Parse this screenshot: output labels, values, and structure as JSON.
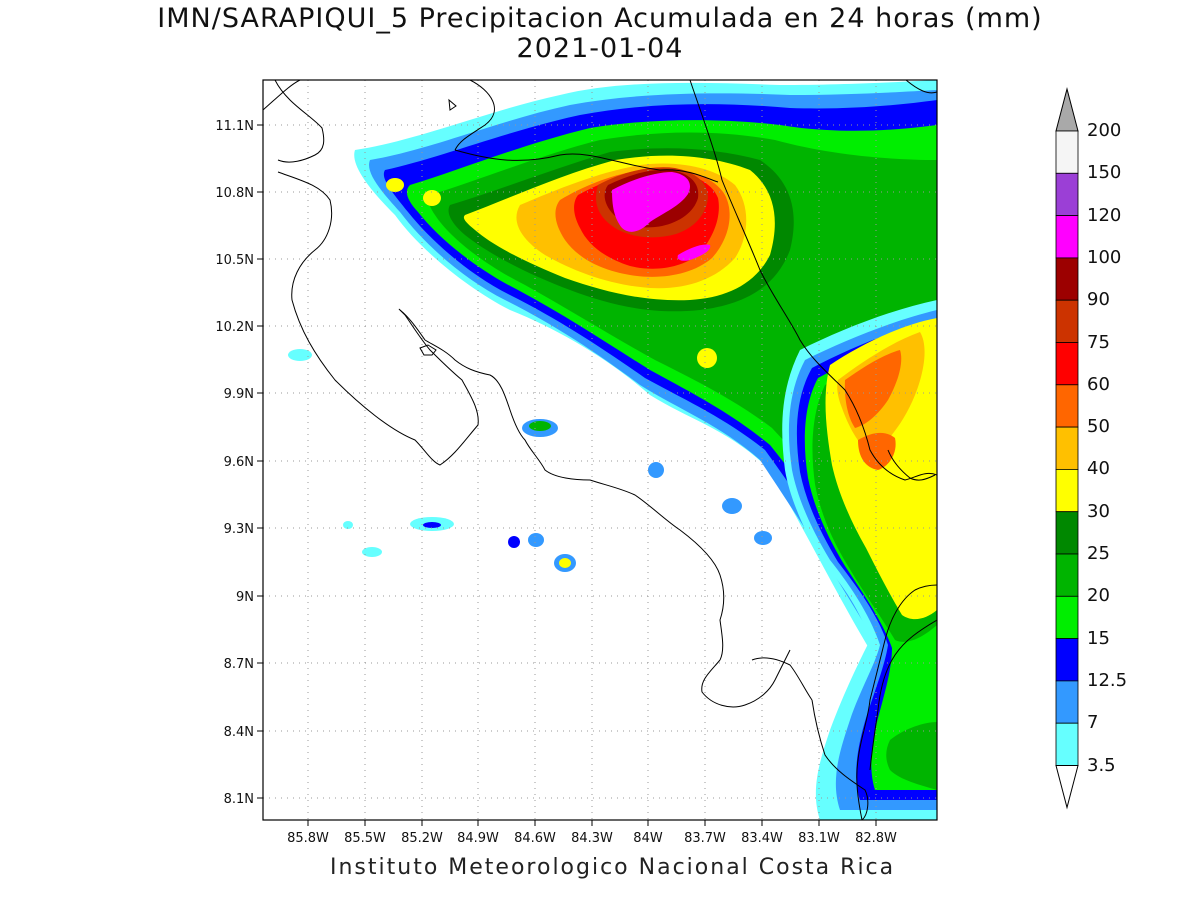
{
  "title": {
    "line1": "IMN/SARAPIQUI_5 Precipitacion Acumulada en 24 horas (mm)",
    "line2": "2021-01-04"
  },
  "footer": "Instituto Meteorologico Nacional Costa Rica",
  "axes": {
    "lat_ticks": [
      "11.1N",
      "10.8N",
      "10.5N",
      "10.2N",
      "9.9N",
      "9.6N",
      "9.3N",
      "9N",
      "8.7N",
      "8.4N",
      "8.1N"
    ],
    "lon_ticks": [
      "85.8W",
      "85.5W",
      "85.2W",
      "84.9W",
      "84.6W",
      "84.3W",
      "84W",
      "83.7W",
      "83.4W",
      "83.1W",
      "82.8W"
    ],
    "lon_range": [
      -86.1,
      -82.5
    ],
    "lat_range": [
      8.0,
      11.3
    ]
  },
  "colorbar": {
    "levels": [
      "200",
      "150",
      "120",
      "100",
      "90",
      "75",
      "60",
      "50",
      "40",
      "30",
      "25",
      "20",
      "15",
      "12.5",
      "7",
      "3.5"
    ],
    "colors": [
      "#a9a9a9",
      "#f5f5f5",
      "#9b3fd6",
      "#ff00ff",
      "#9c0000",
      "#cc3300",
      "#ff0000",
      "#ff6600",
      "#ffc000",
      "#ffff00",
      "#008800",
      "#00b400",
      "#00ee00",
      "#0000ff",
      "#3399ff",
      "#66ffff"
    ]
  },
  "precip_colors": {
    "c35": "#66ffff",
    "c7": "#3399ff",
    "c125": "#0000ff",
    "c15": "#00ee00",
    "c20": "#00b400",
    "c25": "#008800",
    "c30": "#ffff00",
    "c40": "#ffc000",
    "c50": "#ff6600",
    "c60": "#ff0000",
    "c75": "#cc3300",
    "c90": "#9c0000",
    "c100": "#ff00ff",
    "c120": "#9b3fd6"
  }
}
